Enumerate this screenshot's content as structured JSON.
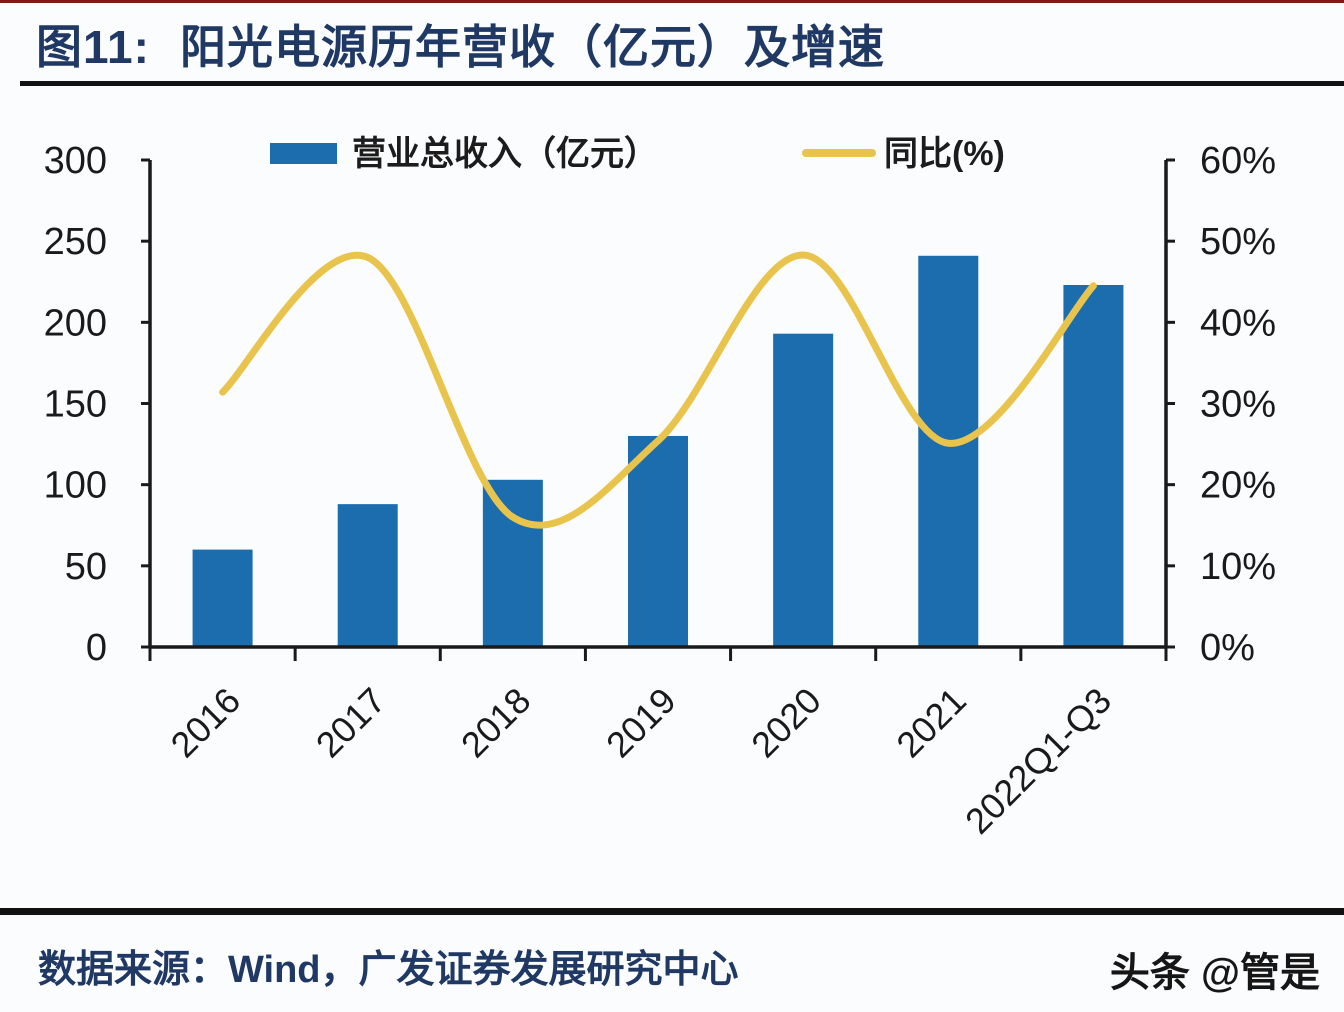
{
  "header": {
    "fig_label": "图11:",
    "title": "阳光电源历年营收（亿元）及增速"
  },
  "footer": {
    "source": "数据来源：Wind，广发证券发展研究中心",
    "watermark": "头条 @管是"
  },
  "colors": {
    "bar_blue": "#1c6dae",
    "line_yellow": "#e9c44d",
    "title_navy": "#1f3864",
    "top_accent_red": "#7c1c15",
    "divider_black": "#121212",
    "axis_black": "#1a1a1a"
  },
  "chart_data": {
    "type": "bar",
    "subtype": "bar-and-line-combo",
    "categories": [
      "2016",
      "2017",
      "2018",
      "2019",
      "2020",
      "2021",
      "2022Q1-Q3"
    ],
    "series": [
      {
        "name": "营业总收入（亿元）",
        "type": "bar",
        "axis": "left",
        "values": [
          60,
          88,
          103,
          130,
          193,
          241,
          223
        ]
      },
      {
        "name": "同比(%)",
        "type": "line",
        "axis": "right",
        "values": [
          31.4,
          48.0,
          16.0,
          25.4,
          48.3,
          25.1,
          44.5
        ]
      }
    ],
    "left_axis": {
      "min": 0,
      "max": 300,
      "step": 50,
      "ticks": [
        "0",
        "50",
        "100",
        "150",
        "200",
        "250",
        "300"
      ]
    },
    "right_axis": {
      "min": 0,
      "max": 60,
      "step": 10,
      "ticks": [
        "0%",
        "10%",
        "20%",
        "30%",
        "40%",
        "50%",
        "60%"
      ]
    },
    "grid": false,
    "legend_position": "top",
    "x_label_rotation_deg": -45
  }
}
